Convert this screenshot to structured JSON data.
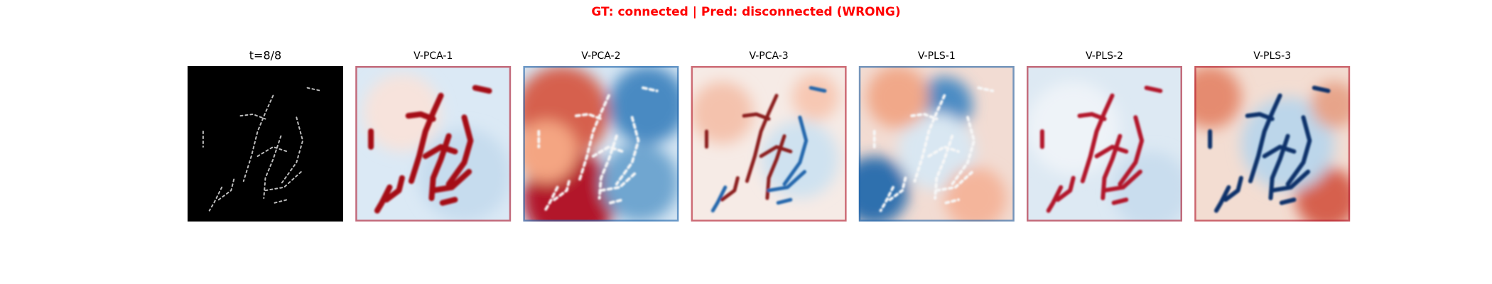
{
  "title": "GT: connected | Pred: disconnected (WRONG)",
  "panels": [
    {
      "title": "t=8/8"
    },
    {
      "title": "V-PCA-1"
    },
    {
      "title": "V-PCA-2"
    },
    {
      "title": "V-PCA-3"
    },
    {
      "title": "V-PLS-1"
    },
    {
      "title": "V-PLS-2"
    },
    {
      "title": "V-PLS-3"
    }
  ]
}
